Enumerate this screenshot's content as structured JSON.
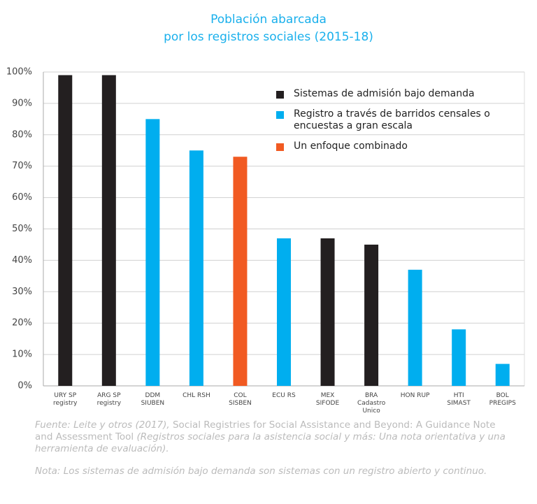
{
  "chart_data": {
    "type": "bar",
    "title": [
      "Población abarcada",
      "por los registros sociales (2015-18)"
    ],
    "categories": [
      [
        "URY SP",
        "registry"
      ],
      [
        "ARG SP",
        "registry"
      ],
      [
        "DDM",
        "SIUBEN"
      ],
      [
        "CHL RSH"
      ],
      [
        "COL",
        "SISBEN"
      ],
      [
        "ECU RS"
      ],
      [
        "MEX",
        "SIFODE"
      ],
      [
        "BRA",
        "Cadastro",
        "Unico"
      ],
      [
        "HON RUP"
      ],
      [
        "HTI",
        "SIMAST"
      ],
      [
        "BOL",
        "PREGIPS"
      ]
    ],
    "series": [
      {
        "name": "Sistemas de admisión bajo demanda",
        "color": "#231f20",
        "values": [
          99,
          99,
          null,
          null,
          null,
          null,
          47,
          45,
          null,
          null,
          null
        ]
      },
      {
        "name": "Registro a través de barridos censales o encuestas a gran escala",
        "color": "#00aeef",
        "values": [
          null,
          null,
          85,
          75,
          null,
          47,
          null,
          null,
          37,
          18,
          7
        ]
      },
      {
        "name": "Un enfoque combinado",
        "color": "#f15a22",
        "values": [
          null,
          null,
          null,
          null,
          73,
          null,
          null,
          null,
          null,
          null,
          null
        ]
      }
    ],
    "ylim": [
      0,
      100
    ],
    "yticks": [
      {
        "value": 0,
        "label": "0%"
      },
      {
        "value": 10,
        "label": "10%"
      },
      {
        "value": 20,
        "label": "20%"
      },
      {
        "value": 30,
        "label": "30%"
      },
      {
        "value": 40,
        "label": "40%"
      },
      {
        "value": 50,
        "label": "50%"
      },
      {
        "value": 60,
        "label": "60%"
      },
      {
        "value": 70,
        "label": "70%"
      },
      {
        "value": 80,
        "label": "80%"
      },
      {
        "value": 90,
        "label": "90%"
      },
      {
        "value": 100,
        "label": "100%"
      }
    ],
    "grid": true
  },
  "notes": {
    "source": [
      {
        "text": "Fuente: Leite y otros (2017), ",
        "italic": true
      },
      {
        "text": "Social Registries for Social Assistance and Beyond: A Guidance Note and Assessment Tool ",
        "italic": false
      },
      {
        "text": "(Registros sociales para la asistencia social y más: Una nota orientativa y una herramienta de evaluación).",
        "italic": true
      }
    ],
    "note": "Nota: Los sistemas de admisión bajo demanda son sistemas con un registro abierto y continuo."
  }
}
